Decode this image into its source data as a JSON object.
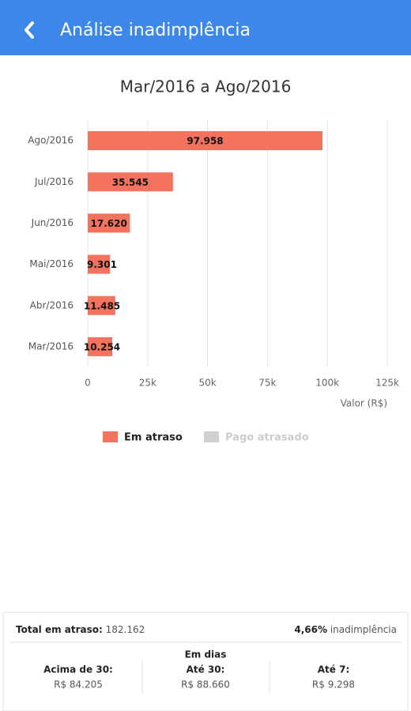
{
  "header": {
    "title": "Análise inadimplência"
  },
  "chart_data": {
    "type": "hbar",
    "title": "Mar/2016 a Ago/2016",
    "categories": [
      "Ago/2016",
      "Jul/2016",
      "Jun/2016",
      "Mai/2016",
      "Abr/2016",
      "Mar/2016"
    ],
    "series": [
      {
        "name": "Em atraso",
        "color": "#f4735f",
        "values": [
          97958,
          35545,
          17620,
          9301,
          11485,
          10254
        ]
      }
    ],
    "value_labels": [
      "97.958",
      "35.545",
      "17.620",
      "9.301",
      "11.485",
      "10.254"
    ],
    "legend": [
      {
        "name": "Em atraso",
        "color": "#f4735f"
      },
      {
        "name": "Pago atrasado",
        "color": "#d0d0d0"
      }
    ],
    "xlim": [
      0,
      125000
    ],
    "xticks": [
      0,
      {
        "value": 25000,
        "label": "25k"
      },
      {
        "value": 50000,
        "label": "50k"
      },
      {
        "value": 75000,
        "label": "75k"
      },
      {
        "value": 100000,
        "label": "100k"
      },
      {
        "value": 125000,
        "label": "125k"
      }
    ],
    "x_label": "Valor (R$)",
    "grid": true
  },
  "summary": {
    "total_label": "Total em atraso:",
    "total_value": "182.162",
    "rate_value": "4,66%",
    "rate_label": "inadimplência",
    "subtitle": "Em dias",
    "columns": [
      {
        "label": "Acima de 30:",
        "value": "R$ 84.205"
      },
      {
        "label": "Até 30:",
        "value": "R$ 88.660"
      },
      {
        "label": "Até 7:",
        "value": "R$ 9.298"
      }
    ]
  }
}
